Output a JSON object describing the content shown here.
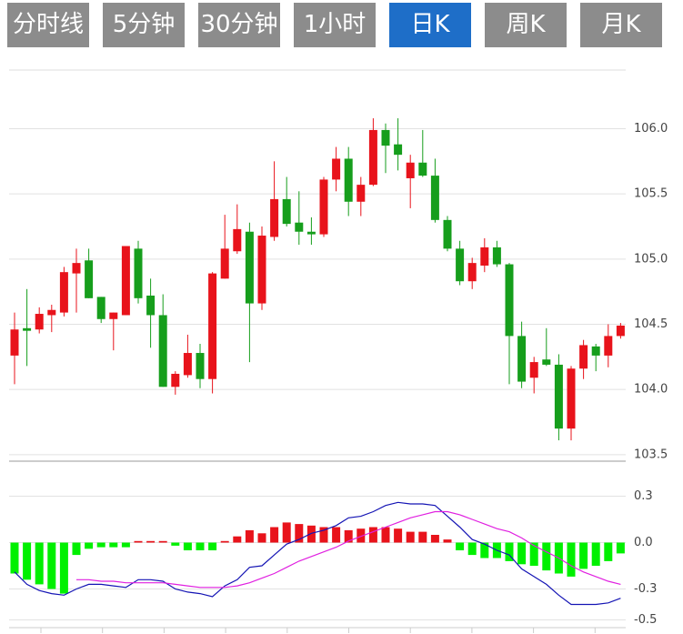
{
  "tabs": [
    "分时线",
    "5分钟",
    "30分钟",
    "1小时",
    "日K",
    "周K",
    "月K"
  ],
  "active_tab": 4,
  "chart_data": [
    {
      "type": "candlestick",
      "open": [
        104.26,
        104.47,
        104.46,
        104.57,
        104.59,
        104.89,
        104.99,
        104.71,
        104.54,
        104.57,
        105.08,
        104.72,
        104.57,
        104.02,
        104.11,
        104.28,
        104.08,
        104.85,
        105.06,
        105.21,
        104.66,
        105.17,
        105.46,
        105.28,
        105.21,
        105.19,
        105.61,
        105.77,
        105.44,
        105.57,
        105.99,
        105.88,
        105.62,
        105.74,
        105.64,
        105.3,
        105.08,
        104.83,
        104.95,
        105.09,
        104.96,
        104.41,
        104.09,
        104.23,
        104.19,
        103.7,
        104.16,
        104.33,
        104.26,
        104.41
      ],
      "high": [
        104.59,
        104.77,
        104.63,
        104.65,
        104.94,
        105.08,
        105.08,
        104.71,
        104.59,
        105.1,
        105.14,
        104.85,
        104.73,
        104.14,
        104.42,
        104.35,
        104.9,
        105.34,
        105.42,
        105.28,
        105.25,
        105.75,
        105.63,
        105.52,
        105.32,
        105.63,
        105.86,
        105.86,
        105.63,
        106.08,
        106.04,
        106.08,
        105.8,
        105.99,
        105.77,
        105.33,
        105.14,
        105.01,
        105.16,
        105.14,
        104.97,
        104.52,
        104.25,
        104.47,
        104.27,
        104.18,
        104.38,
        104.35,
        104.5,
        104.51
      ],
      "low": [
        104.04,
        104.18,
        104.43,
        104.44,
        104.56,
        104.59,
        104.7,
        104.51,
        104.3,
        104.57,
        104.66,
        104.32,
        104.02,
        103.96,
        104.09,
        104.01,
        103.97,
        104.85,
        105.04,
        104.21,
        104.61,
        105.14,
        105.25,
        105.11,
        105.11,
        105.17,
        105.52,
        105.33,
        105.33,
        105.56,
        105.66,
        105.68,
        105.39,
        105.63,
        105.28,
        105.06,
        104.8,
        104.77,
        104.9,
        104.94,
        104.04,
        104.01,
        103.97,
        104.18,
        103.61,
        103.61,
        104.08,
        104.14,
        104.17,
        104.39
      ],
      "close": [
        104.46,
        104.45,
        104.58,
        104.61,
        104.9,
        104.97,
        104.7,
        104.54,
        104.59,
        105.1,
        104.7,
        104.57,
        104.02,
        104.12,
        104.28,
        104.08,
        104.89,
        105.08,
        105.23,
        104.66,
        105.18,
        105.46,
        105.27,
        105.21,
        105.19,
        105.61,
        105.77,
        105.44,
        105.57,
        105.99,
        105.87,
        105.8,
        105.74,
        105.64,
        105.3,
        105.08,
        104.83,
        104.97,
        105.09,
        104.96,
        104.41,
        104.06,
        104.21,
        104.19,
        103.7,
        104.16,
        104.34,
        104.26,
        104.41,
        104.49
      ],
      "up_color": "#e8131b",
      "down_color": "#169e1c",
      "ylim": [
        103.45,
        106.45
      ],
      "yticks": [
        {
          "value": 106,
          "label": "106.0"
        },
        105.5,
        {
          "value": 105,
          "label": "105.0"
        },
        104.5,
        {
          "value": 104,
          "label": "104.0"
        },
        103.5
      ],
      "grid": true
    },
    {
      "type": "macd",
      "histogram": [
        -0.2,
        -0.24,
        -0.27,
        -0.3,
        -0.33,
        -0.08,
        -0.04,
        -0.03,
        -0.03,
        -0.03,
        0.01,
        0.01,
        0.01,
        -0.02,
        -0.05,
        -0.05,
        -0.05,
        0.01,
        0.04,
        0.08,
        0.06,
        0.1,
        0.13,
        0.12,
        0.11,
        0.1,
        0.1,
        0.08,
        0.09,
        0.1,
        0.1,
        0.09,
        0.07,
        0.07,
        0.05,
        0.02,
        -0.05,
        -0.08,
        -0.1,
        -0.1,
        -0.12,
        -0.14,
        -0.15,
        -0.18,
        -0.2,
        -0.22,
        -0.17,
        -0.15,
        -0.12,
        -0.07
      ],
      "positive_color": "#e8131b",
      "negative_color": "#00f000",
      "lines": [
        {
          "color": "#1414b4",
          "values": [
            -0.19,
            -0.27,
            -0.31,
            -0.33,
            -0.34,
            -0.3,
            -0.27,
            -0.27,
            -0.28,
            -0.29,
            -0.24,
            -0.24,
            -0.25,
            -0.3,
            -0.32,
            -0.33,
            -0.35,
            -0.28,
            -0.24,
            -0.16,
            -0.15,
            -0.08,
            -0.01,
            0.02,
            0.06,
            0.08,
            0.11,
            0.16,
            0.17,
            0.2,
            0.24,
            0.26,
            0.25,
            0.25,
            0.24,
            0.17,
            0.1,
            0.02,
            -0.01,
            -0.05,
            -0.08,
            -0.17,
            -0.22,
            -0.27,
            -0.34,
            -0.4,
            -0.4,
            -0.4,
            -0.39,
            -0.36
          ]
        },
        {
          "color": "#e020e0",
          "values": [
            null,
            null,
            null,
            null,
            null,
            -0.24,
            -0.24,
            -0.25,
            -0.25,
            -0.26,
            -0.26,
            -0.26,
            -0.26,
            -0.27,
            -0.28,
            -0.29,
            -0.29,
            -0.29,
            -0.28,
            -0.26,
            -0.23,
            -0.2,
            -0.16,
            -0.12,
            -0.09,
            -0.06,
            -0.03,
            0.01,
            0.04,
            0.07,
            0.1,
            0.13,
            0.16,
            0.18,
            0.2,
            0.2,
            0.18,
            0.15,
            0.12,
            0.09,
            0.07,
            0.03,
            -0.02,
            -0.06,
            -0.1,
            -0.15,
            -0.19,
            -0.22,
            -0.25,
            -0.27
          ]
        }
      ],
      "ylim": [
        -0.55,
        0.45
      ],
      "yticks": [
        0.3,
        {
          "value": 0,
          "label": "0.0"
        },
        -0.3,
        -0.5
      ],
      "grid": true
    }
  ]
}
